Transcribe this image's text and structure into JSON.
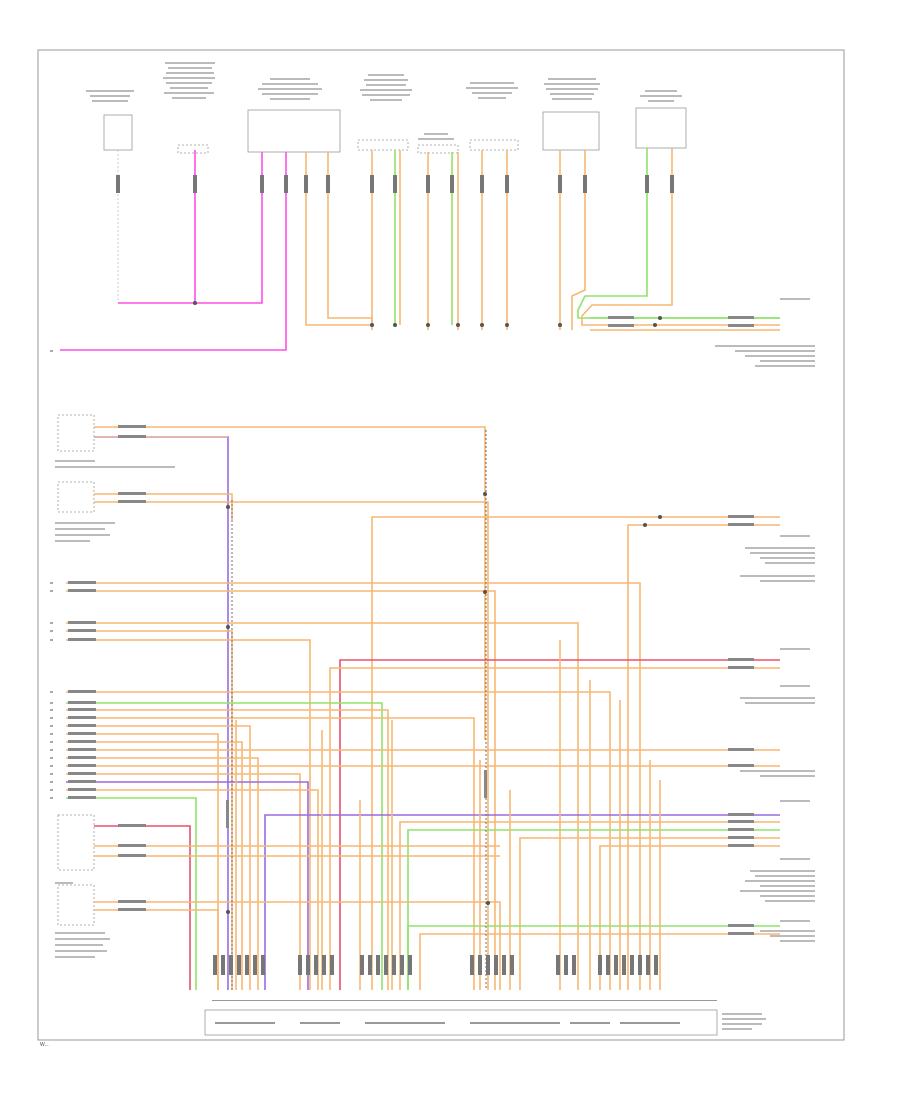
{
  "colors": {
    "border": "#9a9a9a",
    "pink": "#ff4fe6",
    "orange": "#f6b773",
    "green": "#8fe36a",
    "purple": "#9a6ae0",
    "red": "#e8526a",
    "gray_dash": "#6f6f6f"
  },
  "footer": "W..."
}
